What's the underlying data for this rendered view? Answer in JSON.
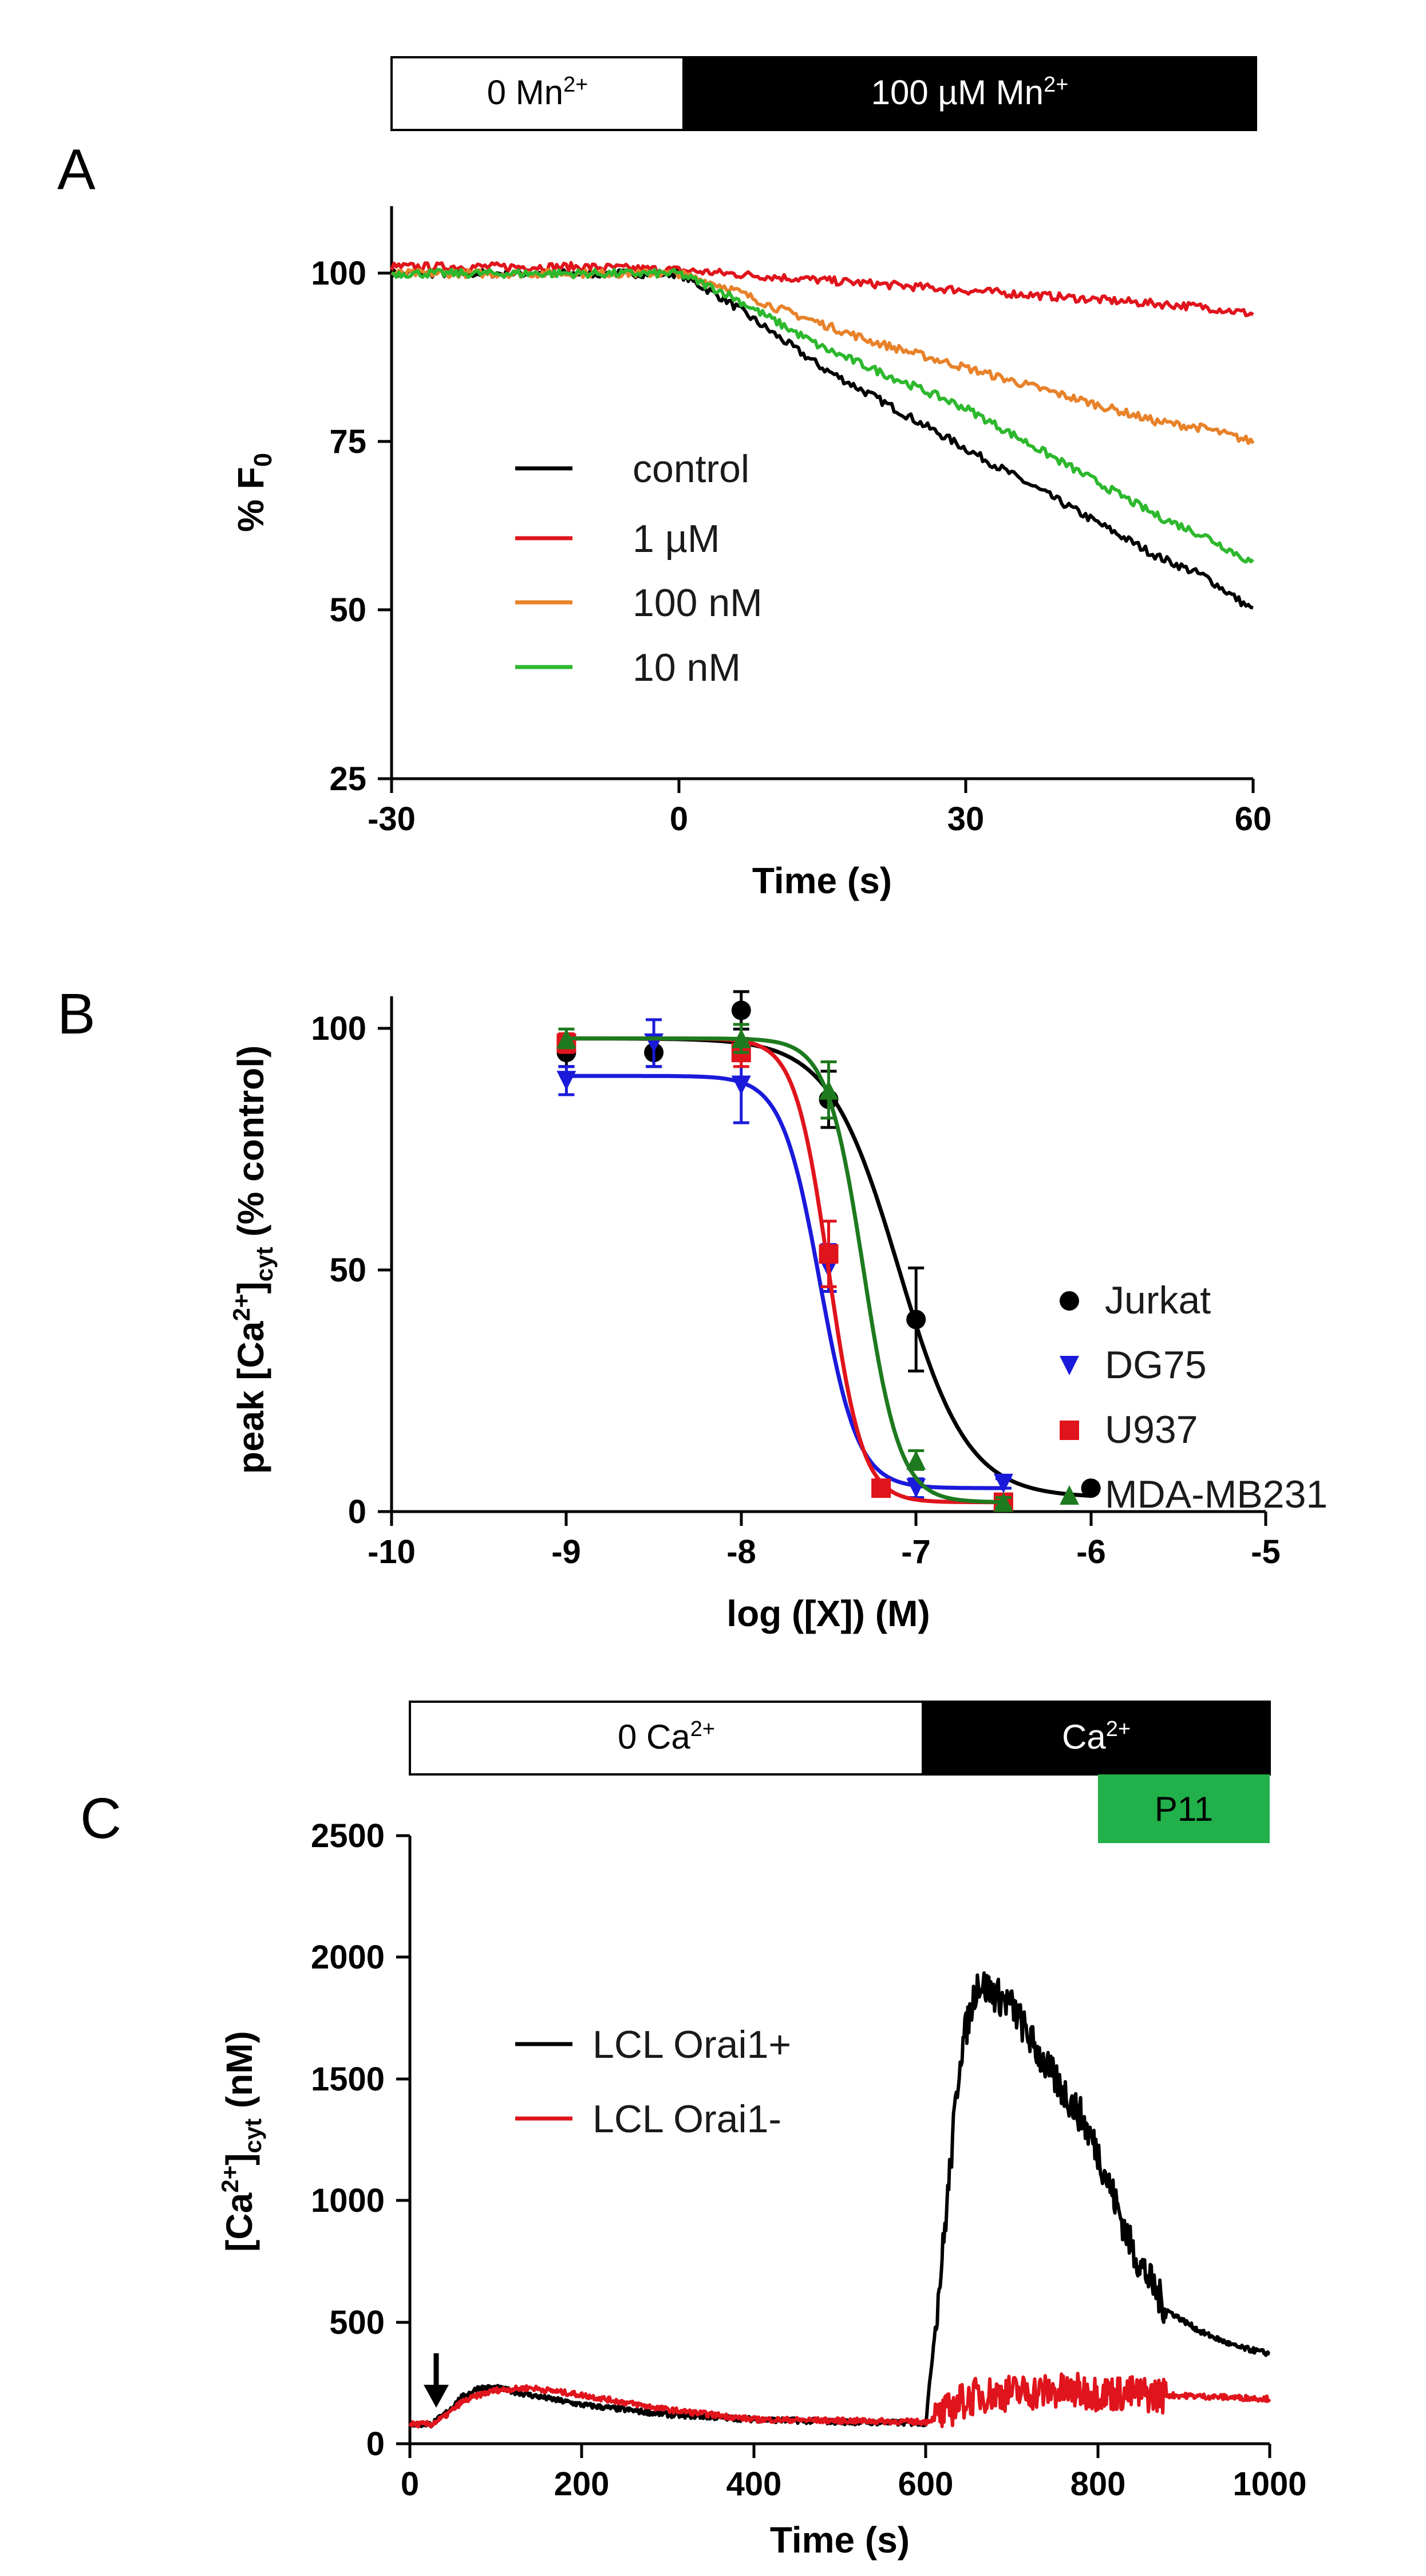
{
  "figure": {
    "panel_a": {
      "letter": "A",
      "bar": {
        "left_label": "0 Mn",
        "left_sup": "2+",
        "right_label": "100 µM Mn",
        "right_sup": "2+"
      },
      "ylabel_main": "% F",
      "ylabel_sub": "0",
      "xlabel": "Time (s)",
      "xticks": [
        "-30",
        "0",
        "30",
        "60"
      ],
      "yticks": [
        "25",
        "50",
        "75",
        "100"
      ]
    },
    "panel_b": {
      "letter": "B",
      "ylabel_pre": "peak [Ca",
      "ylabel_sup": "2+",
      "ylabel_mid": "]",
      "ylabel_sub": "cyt",
      "ylabel_post": " (% control)",
      "xlabel": "log ([X]) (M)",
      "xticks": [
        "-10",
        "-9",
        "-8",
        "-7",
        "-6",
        "-5"
      ],
      "yticks": [
        "0",
        "50",
        "100"
      ]
    },
    "panel_c": {
      "letter": "C",
      "bar": {
        "left_label": "0 Ca",
        "left_sup": "2+",
        "right_label": "Ca",
        "right_sup": "2+",
        "p11_label": "P11"
      },
      "ylabel_pre": "[Ca",
      "ylabel_sup": "2+",
      "ylabel_mid": "]",
      "ylabel_sub": "cyt",
      "ylabel_post": " (nM)",
      "xlabel": "Time (s)",
      "xticks": [
        "0",
        "200",
        "400",
        "600",
        "800",
        "1000"
      ],
      "yticks": [
        "0",
        "500",
        "1000",
        "1500",
        "2000",
        "2500"
      ]
    }
  },
  "colors": {
    "black": "#000000",
    "red": "#e0141c",
    "orange": "#e8822a",
    "green": "#2db82d",
    "blue": "#1a1adb",
    "darkgreen": "#1e7a1e",
    "p11": "#22b04b"
  },
  "chart_data": [
    {
      "type": "line",
      "panel": "A",
      "title": "",
      "xlabel": "Time (s)",
      "ylabel": "% F0",
      "xlim": [
        -30,
        60
      ],
      "ylim": [
        25,
        110
      ],
      "x": [
        -30,
        -20,
        -10,
        0,
        5,
        10,
        15,
        20,
        25,
        30,
        35,
        40,
        45,
        50,
        55,
        60
      ],
      "series": [
        {
          "name": "control",
          "color": "#000000",
          "values": [
            100,
            100,
            100,
            100,
            96,
            91,
            86,
            82,
            78,
            74,
            70,
            66,
            62,
            58,
            55,
            50
          ]
        },
        {
          "name": "1 µM",
          "color": "#e0141c",
          "values": [
            101,
            101,
            101,
            100.5,
            100,
            99.5,
            99,
            98.5,
            98,
            97.5,
            97,
            96.5,
            96,
            95.5,
            95,
            94
          ]
        },
        {
          "name": "100 nM",
          "color": "#e8822a",
          "values": [
            100,
            100,
            100,
            100,
            98,
            95,
            92.5,
            90,
            88,
            86,
            84,
            82,
            80,
            78,
            77,
            75
          ]
        },
        {
          "name": "10 nM",
          "color": "#2db82d",
          "values": [
            100,
            100,
            100,
            100,
            97,
            93,
            89,
            86,
            83,
            80,
            76,
            72,
            68,
            64,
            61,
            57
          ]
        }
      ]
    },
    {
      "type": "scatter",
      "panel": "B",
      "title": "",
      "xlabel": "log ([X]) (M)",
      "ylabel": "peak [Ca2+]cyt (% control)",
      "xlim": [
        -10,
        -5
      ],
      "ylim": [
        0,
        110
      ],
      "fit": "sigmoidal dose-response",
      "series": [
        {
          "name": "Jurkat",
          "color": "#000000",
          "marker": "circle",
          "x": [
            -9,
            -8.5,
            -8,
            -7.5,
            -7,
            -6
          ],
          "y": [
            98,
            98,
            107,
            88,
            41,
            5
          ],
          "err": [
            3,
            3,
            4,
            6,
            11,
            1
          ],
          "fit": {
            "top": 101,
            "bottom": 3,
            "logIC50": -7.1,
            "hill": -2.2
          }
        },
        {
          "name": "DG75",
          "color": "#1a1adb",
          "marker": "triangle-down",
          "x": [
            -9,
            -8.5,
            -8,
            -7.5,
            -7,
            -6.5
          ],
          "y": [
            92,
            100,
            91,
            52,
            5,
            6
          ],
          "err": [
            3,
            5,
            8,
            5,
            2,
            1
          ],
          "fit": {
            "top": 93,
            "bottom": 5,
            "logIC50": -7.55,
            "hill": -4
          }
        },
        {
          "name": "U937",
          "color": "#e0141c",
          "marker": "square",
          "x": [
            -9,
            -8,
            -7.5,
            -7.2,
            -6.5
          ],
          "y": [
            100,
            98,
            55,
            5,
            2
          ],
          "err": [
            2,
            3,
            7,
            1,
            1
          ],
          "fit": {
            "top": 101,
            "bottom": 2,
            "logIC50": -7.5,
            "hill": -4.5
          }
        },
        {
          "name": "MDA-MB231",
          "color": "#1e7a1e",
          "marker": "triangle-up",
          "x": [
            -9,
            -8,
            -7.5,
            -7,
            -6.5
          ],
          "y": [
            101,
            101,
            90,
            11,
            2
          ],
          "err": [
            2,
            3,
            6,
            2,
            1
          ],
          "fit": {
            "top": 101,
            "bottom": 2,
            "logIC50": -7.3,
            "hill": -4.2
          }
        }
      ]
    },
    {
      "type": "line",
      "panel": "C",
      "title": "",
      "xlabel": "Time (s)",
      "ylabel": "[Ca2+]cyt (nM)",
      "xlim": [
        0,
        1000
      ],
      "ylim": [
        0,
        2500
      ],
      "annotations": [
        "arrow at t = 30 s (down)"
      ],
      "x": [
        0,
        25,
        40,
        60,
        80,
        100,
        140,
        200,
        300,
        400,
        500,
        590,
        600,
        620,
        640,
        660,
        700,
        740,
        780,
        800,
        840,
        880,
        920,
        960,
        1000
      ],
      "series": [
        {
          "name": "LCL Orai1+",
          "color": "#000000",
          "values": [
            80,
            80,
            120,
            190,
            230,
            230,
            200,
            160,
            120,
            100,
            90,
            85,
            85,
            800,
            1600,
            1900,
            1800,
            1550,
            1350,
            1200,
            800,
            550,
            460,
            400,
            370
          ]
        },
        {
          "name": "LCL Orai1-",
          "color": "#e0141c",
          "values": [
            80,
            80,
            110,
            170,
            200,
            220,
            230,
            200,
            140,
            100,
            95,
            90,
            90,
            120,
            170,
            200,
            210,
            215,
            215,
            210,
            205,
            200,
            195,
            190,
            185
          ]
        }
      ]
    }
  ]
}
